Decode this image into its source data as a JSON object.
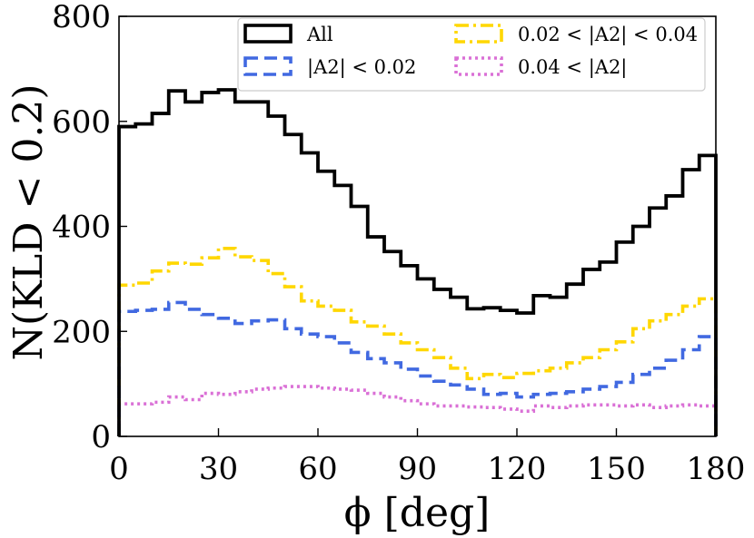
{
  "chart_data": {
    "type": "step-histogram",
    "xlabel": "ϕ [deg]",
    "ylabel": "N(KLD < 0.2)",
    "xlim": [
      0,
      180
    ],
    "ylim": [
      0,
      800
    ],
    "xticks": [
      0,
      30,
      60,
      90,
      120,
      150,
      180
    ],
    "yticks": [
      0,
      200,
      400,
      600,
      800
    ],
    "bin_edges": [
      0,
      5,
      10,
      15,
      20,
      25,
      30,
      35,
      40,
      45,
      50,
      55,
      60,
      65,
      70,
      75,
      80,
      85,
      90,
      95,
      100,
      105,
      110,
      115,
      120,
      125,
      130,
      135,
      140,
      145,
      150,
      155,
      160,
      165,
      170,
      175,
      180
    ],
    "grid": false,
    "legend_position": "top-right",
    "legend_columns": 2,
    "series": [
      {
        "name": "All",
        "color": "#000000",
        "style": "solid",
        "values": [
          590,
          595,
          615,
          658,
          637,
          655,
          660,
          637,
          637,
          610,
          575,
          540,
          505,
          478,
          438,
          380,
          352,
          325,
          300,
          280,
          265,
          243,
          245,
          240,
          235,
          268,
          265,
          290,
          318,
          332,
          370,
          400,
          435,
          458,
          508,
          535,
          568
        ]
      },
      {
        "name": "|A2| < 0.02",
        "color": "#4169e1",
        "style": "dashed",
        "values": [
          238,
          240,
          242,
          255,
          242,
          232,
          225,
          215,
          220,
          222,
          205,
          195,
          190,
          178,
          160,
          148,
          140,
          128,
          115,
          105,
          98,
          90,
          80,
          82,
          75,
          80,
          82,
          85,
          90,
          95,
          103,
          118,
          130,
          145,
          165,
          190,
          210,
          222
        ]
      },
      {
        "name": "0.02 < |A2| < 0.04",
        "color": "#ffd700",
        "style": "dashdot",
        "values": [
          288,
          292,
          315,
          330,
          328,
          340,
          358,
          342,
          335,
          310,
          285,
          258,
          248,
          240,
          218,
          210,
          195,
          178,
          165,
          150,
          130,
          110,
          118,
          112,
          120,
          125,
          130,
          140,
          150,
          165,
          180,
          205,
          220,
          232,
          248,
          262,
          272,
          288
        ]
      },
      {
        "name": "0.04 < |A2|",
        "color": "#da70d6",
        "style": "dotted",
        "values": [
          62,
          62,
          65,
          75,
          70,
          82,
          80,
          85,
          90,
          92,
          95,
          95,
          92,
          90,
          88,
          82,
          75,
          68,
          62,
          58,
          58,
          56,
          55,
          52,
          48,
          58,
          55,
          58,
          60,
          60,
          58,
          60,
          55,
          58,
          60,
          58,
          62
        ]
      }
    ]
  },
  "legend": {
    "entries": [
      {
        "label": "All",
        "color": "#000000",
        "style": "solid",
        "column": 0,
        "row": 0
      },
      {
        "label": "|A2| < 0.02",
        "color": "#4169e1",
        "style": "dashed",
        "column": 0,
        "row": 1
      },
      {
        "label": "0.02 < |A2| < 0.04",
        "color": "#ffd700",
        "style": "dashdot",
        "column": 1,
        "row": 0
      },
      {
        "label": "0.04 < |A2|",
        "color": "#da70d6",
        "style": "dotted",
        "column": 1,
        "row": 1
      }
    ]
  }
}
